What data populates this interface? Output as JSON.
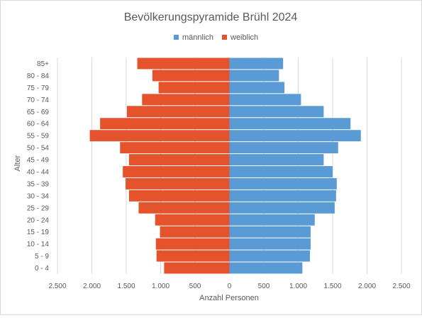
{
  "chart_data": {
    "type": "bar",
    "orientation": "horizontal",
    "layout": "population-pyramid",
    "title": "Bevölkerungspyramide Brühl 2024",
    "xlabel": "Anzahl Personen",
    "ylabel": "Alter",
    "xlim": [
      -2500,
      2500
    ],
    "x_ticks": [
      -2500,
      -2000,
      -1500,
      -1000,
      -500,
      0,
      500,
      1000,
      1500,
      2000,
      2500
    ],
    "x_tick_labels": [
      "2.500",
      "2.000",
      "1.500",
      "1.000",
      "500",
      "0",
      "500",
      "1.000",
      "1.500",
      "2.000",
      "2.500"
    ],
    "grid": true,
    "legend_position": "top-right",
    "categories": [
      "85+",
      "80 - 84",
      "75 - 79",
      "70 - 74",
      "65 - 69",
      "60 - 64",
      "55 - 59",
      "50 - 54",
      "45 - 49",
      "40 - 44",
      "35 - 39",
      "30 - 34",
      "25 - 29",
      "20 - 24",
      "15 - 19",
      "10 - 14",
      "5 - 9",
      "0 - 4"
    ],
    "series": [
      {
        "name": "männlich",
        "color": "#5b9bd5",
        "values": [
          780,
          720,
          800,
          1040,
          1370,
          1760,
          1910,
          1580,
          1370,
          1500,
          1560,
          1550,
          1530,
          1240,
          1180,
          1180,
          1170,
          1060
        ]
      },
      {
        "name": "weiblich",
        "color": "#e5532d",
        "values": [
          1340,
          1120,
          1030,
          1270,
          1490,
          1880,
          2030,
          1590,
          1460,
          1550,
          1510,
          1460,
          1320,
          1080,
          1010,
          1070,
          1060,
          950
        ]
      }
    ]
  }
}
